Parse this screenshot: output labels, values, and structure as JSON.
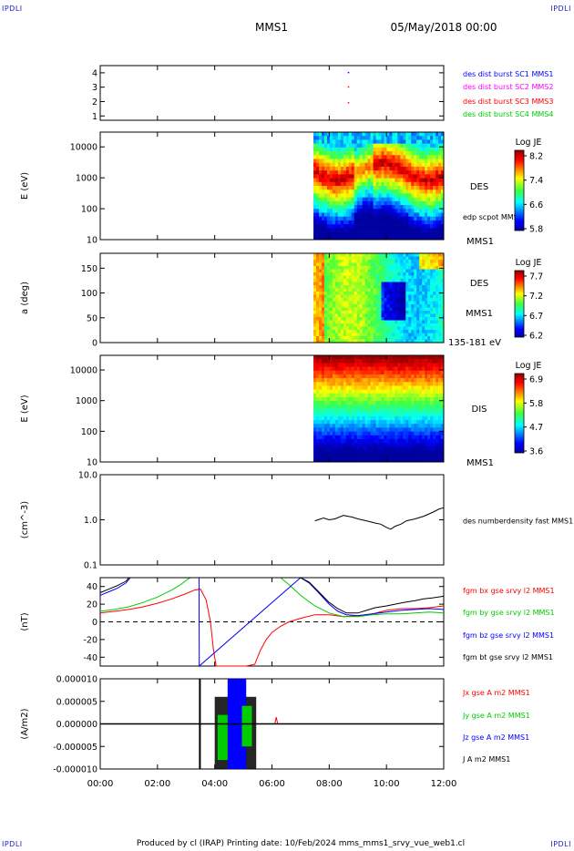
{
  "header": {
    "spacecraft": "MMS1",
    "datetime": "05/May/2018 00:00",
    "corner_label": "IPDLI",
    "footer": "Produced by cl (IRAP)   Printing date: 10/Feb/2024   mms_mms1_srvy_vue_web1.cl"
  },
  "time_axis": {
    "range_hours": [
      0,
      12
    ],
    "tick_hours": [
      0,
      2,
      4,
      6,
      8,
      10,
      12
    ],
    "tick_labels": [
      "00:00",
      "02:00",
      "04:00",
      "06:00",
      "08:00",
      "10:00",
      "12:00"
    ]
  },
  "chart_data": [
    {
      "id": "burst",
      "type": "scatter",
      "yticks": [
        1,
        2,
        3,
        4
      ],
      "ylim": [
        0.7,
        4.5
      ],
      "legend": [
        {
          "text": "des dist burst SC1 MMS1",
          "color": "#0000ff"
        },
        {
          "text": "des dist burst SC2 MMS2",
          "color": "#ff00ff"
        },
        {
          "text": "des dist burst SC3 MMS3",
          "color": "#ff0000"
        },
        {
          "text": "des dist burst SC4 MMS4",
          "color": "#00cc00"
        }
      ],
      "points": [
        {
          "x": 8.65,
          "y": 4.0,
          "color": "#0000ff"
        },
        {
          "x": 8.65,
          "y": 3.0,
          "color": "#ff0000"
        },
        {
          "x": 8.65,
          "y": 1.9,
          "color": "#ff0000"
        }
      ]
    },
    {
      "id": "des_energy",
      "type": "heatmap",
      "ylabel": "E (eV)",
      "yscale": "log",
      "ylim": [
        10,
        30000
      ],
      "yticks": [
        10,
        100,
        1000,
        10000
      ],
      "ytick_labels": [
        "10",
        "100",
        "1000",
        "10000"
      ],
      "data_start_hours": 7.45,
      "label_lines": [
        "DES",
        "edp scpot MMS1",
        "MMS1"
      ],
      "colorbar": {
        "title": "Log JE",
        "ticks": [
          "8.2",
          "7.4",
          "6.6",
          "5.8"
        ]
      }
    },
    {
      "id": "des_pitch",
      "type": "heatmap",
      "ylabel": "a (deg)",
      "ylim": [
        0,
        180
      ],
      "yticks": [
        0,
        50,
        100,
        150
      ],
      "ytick_labels": [
        "0",
        "50",
        "100",
        "150"
      ],
      "data_start_hours": 7.45,
      "label_lines": [
        "DES",
        "MMS1",
        "135-181 eV"
      ],
      "colorbar": {
        "title": "Log JE",
        "ticks": [
          "7.7",
          "7.2",
          "6.7",
          "6.2"
        ]
      }
    },
    {
      "id": "dis_energy",
      "type": "heatmap",
      "ylabel": "E (eV)",
      "yscale": "log",
      "ylim": [
        10,
        30000
      ],
      "yticks": [
        10,
        100,
        1000,
        10000
      ],
      "ytick_labels": [
        "10",
        "100",
        "1000",
        "10000"
      ],
      "data_start_hours": 7.45,
      "label_lines": [
        "DIS",
        "MMS1"
      ],
      "colorbar": {
        "title": "Log JE",
        "ticks": [
          "6.9",
          "5.8",
          "4.7",
          "3.6"
        ]
      }
    },
    {
      "id": "density",
      "type": "line",
      "ylabel": "(cm^-3)",
      "yscale": "log",
      "ylim": [
        0.1,
        10
      ],
      "yticks": [
        0.1,
        1,
        10
      ],
      "ytick_labels": [
        "0.1",
        "1.0",
        "10.0"
      ],
      "series": [
        {
          "name": "des numberdensity fast MMS1",
          "color": "#000000",
          "x": [
            7.5,
            7.8,
            8.0,
            8.2,
            8.5,
            8.8,
            9.0,
            9.3,
            9.6,
            9.8,
            10.0,
            10.15,
            10.3,
            10.5,
            10.7,
            11.0,
            11.3,
            11.6,
            11.85,
            12.0
          ],
          "y": [
            0.95,
            1.1,
            1.0,
            1.05,
            1.25,
            1.15,
            1.05,
            0.95,
            0.85,
            0.8,
            0.68,
            0.62,
            0.72,
            0.8,
            0.95,
            1.05,
            1.2,
            1.45,
            1.75,
            1.85
          ]
        }
      ]
    },
    {
      "id": "bfield",
      "type": "line",
      "ylabel": "(nT)",
      "ylim": [
        -50,
        50
      ],
      "yticks": [
        -40,
        -20,
        0,
        20,
        40
      ],
      "ytick_labels": [
        "-40",
        "-20",
        "0",
        "20",
        "40"
      ],
      "series": [
        {
          "name": "fgm bx gse srvy l2 MMS1",
          "color": "#ff0000",
          "x": [
            0,
            0.5,
            1.0,
            1.5,
            2.0,
            2.5,
            3.0,
            3.3,
            3.5,
            3.7,
            3.85,
            3.95,
            4.05,
            4.1,
            4.5,
            4.6,
            5.0,
            5.1,
            5.4,
            5.6,
            5.8,
            6.0,
            6.3,
            6.6,
            7.0,
            7.5,
            8.0,
            8.5,
            9.0,
            9.5,
            10.0,
            10.5,
            11.0,
            11.5,
            12.0
          ],
          "y": [
            10,
            12,
            14,
            17,
            21,
            26,
            32,
            36,
            37,
            25,
            0,
            -30,
            -50,
            -50,
            -50,
            -50,
            -50,
            -50,
            -48,
            -32,
            -20,
            -12,
            -5,
            0,
            4,
            8,
            8,
            6,
            7,
            9,
            13,
            15,
            15,
            16,
            18
          ]
        },
        {
          "name": "fgm by gse srvy l2 MMS1",
          "color": "#00cc00",
          "x": [
            0,
            0.5,
            1.0,
            1.5,
            2.0,
            2.5,
            2.8,
            3.05,
            3.15,
            6.3,
            6.6,
            7.0,
            7.5,
            8.0,
            8.5,
            9.0,
            9.5,
            10.0,
            10.5,
            11.0,
            11.5,
            12.0
          ],
          "y": [
            12,
            14,
            17,
            22,
            28,
            36,
            42,
            48,
            50,
            50,
            42,
            30,
            18,
            10,
            6,
            6,
            8,
            9,
            9,
            10,
            11,
            10
          ]
        },
        {
          "name": "fgm bz gse srvy l2 MMS1",
          "color": "#0000ff",
          "x": [
            0,
            0.3,
            0.6,
            0.9,
            1.05,
            3.45,
            3.45,
            3.46,
            7.0,
            7.3,
            7.6,
            8.0,
            8.3,
            8.6,
            9.0,
            9.5,
            10.0,
            10.5,
            11.0,
            11.5,
            12.0
          ],
          "y": [
            30,
            34,
            38,
            44,
            50,
            50,
            50,
            -50,
            50,
            44,
            34,
            20,
            12,
            8,
            7,
            9,
            11,
            13,
            14,
            15,
            14
          ]
        },
        {
          "name": "fgm bt gse srvy l2 MMS1",
          "color": "#000000",
          "x": [
            0,
            0.3,
            0.6,
            0.9,
            1.0,
            7.0,
            7.3,
            7.6,
            8.0,
            8.3,
            8.6,
            9.0,
            9.3,
            9.6,
            10.0,
            10.3,
            10.6,
            11.0,
            11.3,
            11.6,
            12.0
          ],
          "y": [
            33,
            37,
            41,
            46,
            50,
            50,
            45,
            35,
            22,
            15,
            10,
            10,
            13,
            16,
            18,
            20,
            22,
            24,
            26,
            27,
            29
          ]
        }
      ],
      "zero_line": true
    },
    {
      "id": "current",
      "type": "line",
      "ylabel": "(A/m2)",
      "ylim": [
        -1e-05,
        1e-05
      ],
      "yticks": [
        -1e-05,
        -5e-06,
        0,
        5e-06,
        1e-05
      ],
      "ytick_labels": [
        "-0.000010",
        "-0.000005",
        "0.000000",
        "0.000005",
        "0.000010"
      ],
      "series": [
        {
          "name": "Jx gse A m2 MMS1",
          "color": "#ff0000",
          "x": [
            6.1,
            6.15,
            6.2
          ],
          "y": [
            0,
            1.5e-06,
            0
          ]
        },
        {
          "name": "Jy gse A m2 MMS1",
          "color": "#00cc00",
          "x": [
            3.45,
            4.5,
            5.5
          ],
          "y": [
            0,
            0,
            0
          ]
        },
        {
          "name": "Jz gse A m2 MMS1",
          "color": "#0000ff",
          "x": [
            3.45,
            4.5,
            5.5
          ],
          "y": [
            0,
            0,
            0
          ]
        },
        {
          "name": "J A m2 MMS1",
          "color": "#000000",
          "x": [
            0,
            12
          ],
          "y": [
            0,
            0
          ]
        }
      ]
    }
  ]
}
